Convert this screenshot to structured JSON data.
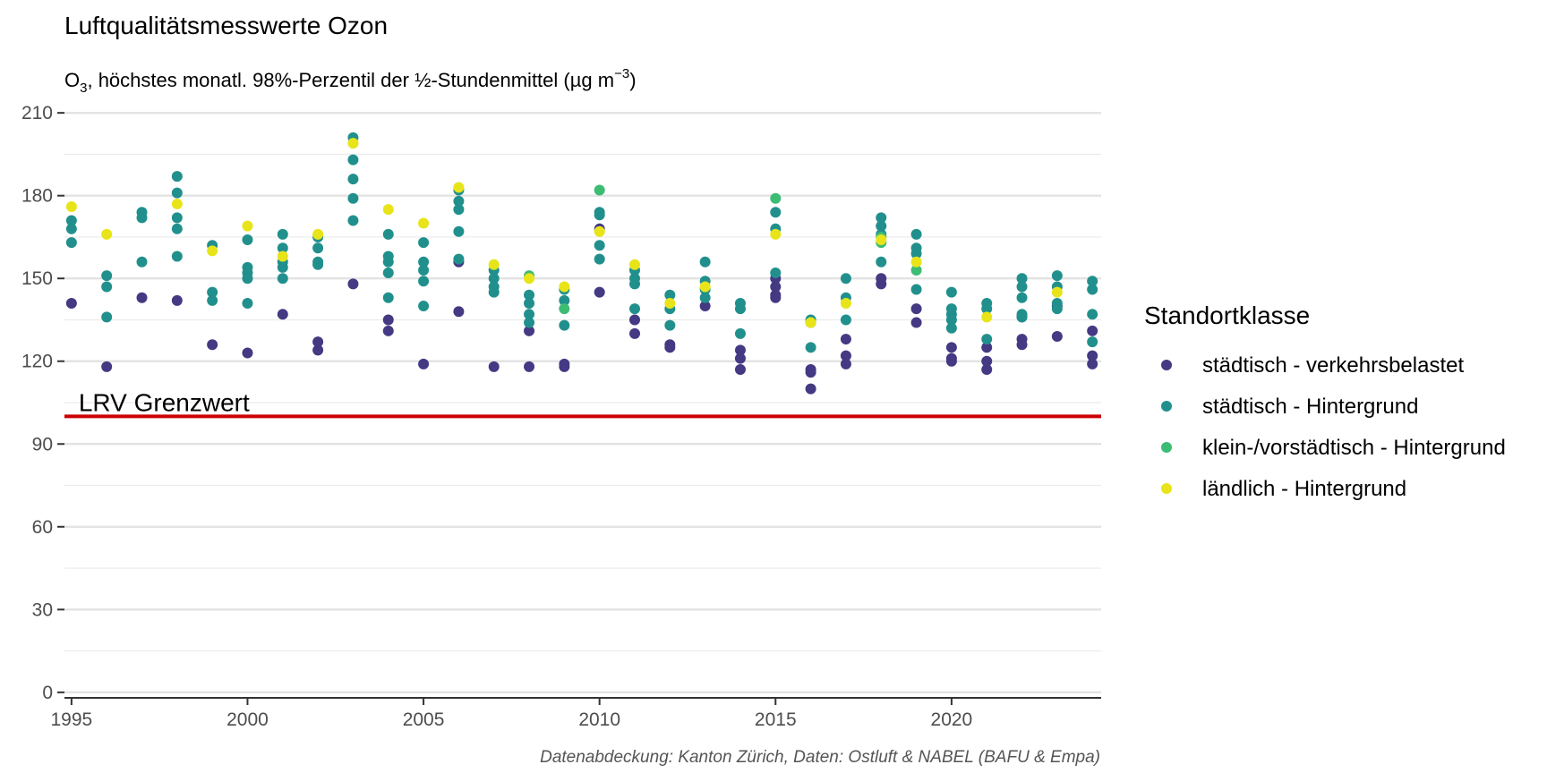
{
  "chart_data": {
    "type": "scatter",
    "title": "Luftqualitätsmesswerte Ozon",
    "subtitle": {
      "pre": "O",
      "sub": "3",
      "mid": ", höchstes monatl. 98%-Perzentil der ½-Stundenmittel (µg m",
      "sup": "−3",
      "post": ")"
    },
    "xlabel": "",
    "ylabel": "",
    "xlim": [
      1994.8,
      2024.25
    ],
    "ylim": [
      -2,
      212
    ],
    "x_ticks": [
      "1995",
      "2000",
      "2005",
      "2010",
      "2015",
      "2020"
    ],
    "y_ticks": [
      "0",
      "30",
      "60",
      "90",
      "120",
      "150",
      "180",
      "210"
    ],
    "grid": true,
    "legend": {
      "title": "Standortklasse",
      "position": "right",
      "items": [
        {
          "label": "städtisch - verkehrsbelastet",
          "color": "#443983"
        },
        {
          "label": "städtisch - Hintergrund",
          "color": "#21908d"
        },
        {
          "label": "klein-/vorstädtisch - Hintergrund",
          "color": "#3dbc74"
        },
        {
          "label": "ländlich - Hintergrund",
          "color": "#e8e419"
        }
      ]
    },
    "threshold": {
      "value": 100,
      "label": "LRV Grenzwert",
      "color": "#cc0000"
    },
    "caption": "Datenabdeckung: Kanton Zürich, Daten: Ostluft & NABEL (BAFU & Empa)",
    "series": [
      {
        "name": "städtisch - verkehrsbelastet",
        "color": "#443983",
        "points": [
          [
            1995,
            141
          ],
          [
            1996,
            118
          ],
          [
            1997,
            143
          ],
          [
            1998,
            142
          ],
          [
            1999,
            126
          ],
          [
            2000,
            123
          ],
          [
            2001,
            137
          ],
          [
            2002,
            127
          ],
          [
            2002,
            124
          ],
          [
            2003,
            148
          ],
          [
            2004,
            135
          ],
          [
            2004,
            131
          ],
          [
            2005,
            119
          ],
          [
            2006,
            138
          ],
          [
            2006,
            156
          ],
          [
            2007,
            118
          ],
          [
            2008,
            118
          ],
          [
            2008,
            131
          ],
          [
            2009,
            119
          ],
          [
            2009,
            118
          ],
          [
            2010,
            145
          ],
          [
            2010,
            168
          ],
          [
            2011,
            135
          ],
          [
            2011,
            130
          ],
          [
            2012,
            126
          ],
          [
            2012,
            125
          ],
          [
            2013,
            140
          ],
          [
            2014,
            124
          ],
          [
            2014,
            121
          ],
          [
            2014,
            117
          ],
          [
            2015,
            150
          ],
          [
            2015,
            147
          ],
          [
            2015,
            144
          ],
          [
            2015,
            143
          ],
          [
            2016,
            117
          ],
          [
            2016,
            116
          ],
          [
            2016,
            110
          ],
          [
            2017,
            128
          ],
          [
            2017,
            122
          ],
          [
            2017,
            119
          ],
          [
            2018,
            150
          ],
          [
            2018,
            148
          ],
          [
            2019,
            139
          ],
          [
            2019,
            134
          ],
          [
            2020,
            125
          ],
          [
            2020,
            121
          ],
          [
            2020,
            120
          ],
          [
            2021,
            125
          ],
          [
            2021,
            120
          ],
          [
            2021,
            117
          ],
          [
            2022,
            136
          ],
          [
            2022,
            128
          ],
          [
            2022,
            126
          ],
          [
            2023,
            140
          ],
          [
            2023,
            129
          ],
          [
            2024,
            131
          ],
          [
            2024,
            122
          ],
          [
            2024,
            119
          ]
        ]
      },
      {
        "name": "städtisch - Hintergrund",
        "color": "#21908d",
        "points": [
          [
            1995,
            171
          ],
          [
            1995,
            168
          ],
          [
            1995,
            163
          ],
          [
            1996,
            151
          ],
          [
            1996,
            147
          ],
          [
            1996,
            136
          ],
          [
            1997,
            174
          ],
          [
            1997,
            172
          ],
          [
            1997,
            156
          ],
          [
            1998,
            187
          ],
          [
            1998,
            181
          ],
          [
            1998,
            172
          ],
          [
            1998,
            168
          ],
          [
            1998,
            158
          ],
          [
            1999,
            162
          ],
          [
            1999,
            145
          ],
          [
            1999,
            142
          ],
          [
            2000,
            164
          ],
          [
            2000,
            154
          ],
          [
            2000,
            152
          ],
          [
            2000,
            150
          ],
          [
            2000,
            141
          ],
          [
            2001,
            166
          ],
          [
            2001,
            161
          ],
          [
            2001,
            156
          ],
          [
            2001,
            154
          ],
          [
            2001,
            150
          ],
          [
            2002,
            165
          ],
          [
            2002,
            161
          ],
          [
            2002,
            156
          ],
          [
            2002,
            155
          ],
          [
            2003,
            201
          ],
          [
            2003,
            193
          ],
          [
            2003,
            186
          ],
          [
            2003,
            179
          ],
          [
            2003,
            171
          ],
          [
            2004,
            166
          ],
          [
            2004,
            158
          ],
          [
            2004,
            156
          ],
          [
            2004,
            152
          ],
          [
            2004,
            143
          ],
          [
            2005,
            163
          ],
          [
            2005,
            156
          ],
          [
            2005,
            153
          ],
          [
            2005,
            149
          ],
          [
            2005,
            140
          ],
          [
            2006,
            182
          ],
          [
            2006,
            178
          ],
          [
            2006,
            175
          ],
          [
            2006,
            167
          ],
          [
            2006,
            157
          ],
          [
            2007,
            153
          ],
          [
            2007,
            150
          ],
          [
            2007,
            147
          ],
          [
            2007,
            145
          ],
          [
            2008,
            144
          ],
          [
            2008,
            141
          ],
          [
            2008,
            137
          ],
          [
            2008,
            134
          ],
          [
            2009,
            146
          ],
          [
            2009,
            142
          ],
          [
            2009,
            133
          ],
          [
            2010,
            174
          ],
          [
            2010,
            173
          ],
          [
            2010,
            162
          ],
          [
            2010,
            157
          ],
          [
            2011,
            153
          ],
          [
            2011,
            150
          ],
          [
            2011,
            148
          ],
          [
            2011,
            139
          ],
          [
            2012,
            144
          ],
          [
            2012,
            139
          ],
          [
            2012,
            133
          ],
          [
            2013,
            156
          ],
          [
            2013,
            149
          ],
          [
            2013,
            146
          ],
          [
            2013,
            143
          ],
          [
            2014,
            141
          ],
          [
            2014,
            139
          ],
          [
            2014,
            130
          ],
          [
            2015,
            174
          ],
          [
            2015,
            168
          ],
          [
            2015,
            152
          ],
          [
            2016,
            135
          ],
          [
            2016,
            134
          ],
          [
            2016,
            125
          ],
          [
            2017,
            150
          ],
          [
            2017,
            143
          ],
          [
            2017,
            135
          ],
          [
            2018,
            172
          ],
          [
            2018,
            169
          ],
          [
            2018,
            166
          ],
          [
            2018,
            156
          ],
          [
            2019,
            166
          ],
          [
            2019,
            161
          ],
          [
            2019,
            159
          ],
          [
            2019,
            146
          ],
          [
            2020,
            145
          ],
          [
            2020,
            139
          ],
          [
            2020,
            137
          ],
          [
            2020,
            135
          ],
          [
            2020,
            132
          ],
          [
            2021,
            141
          ],
          [
            2021,
            139
          ],
          [
            2021,
            128
          ],
          [
            2022,
            150
          ],
          [
            2022,
            147
          ],
          [
            2022,
            143
          ],
          [
            2022,
            137
          ],
          [
            2022,
            136
          ],
          [
            2023,
            151
          ],
          [
            2023,
            147
          ],
          [
            2023,
            141
          ],
          [
            2023,
            139
          ],
          [
            2024,
            149
          ],
          [
            2024,
            146
          ],
          [
            2024,
            137
          ],
          [
            2024,
            127
          ]
        ]
      },
      {
        "name": "klein-/vorstädtisch - Hintergrund",
        "color": "#3dbc74",
        "points": [
          [
            2008,
            151
          ],
          [
            2009,
            139
          ],
          [
            2010,
            182
          ],
          [
            2015,
            179
          ],
          [
            2018,
            165
          ],
          [
            2018,
            163
          ],
          [
            2019,
            153
          ]
        ]
      },
      {
        "name": "ländlich - Hintergrund",
        "color": "#e8e419",
        "points": [
          [
            1995,
            176
          ],
          [
            1996,
            166
          ],
          [
            1998,
            177
          ],
          [
            1999,
            160
          ],
          [
            2000,
            169
          ],
          [
            2001,
            158
          ],
          [
            2002,
            166
          ],
          [
            2003,
            199
          ],
          [
            2004,
            175
          ],
          [
            2005,
            170
          ],
          [
            2006,
            183
          ],
          [
            2007,
            155
          ],
          [
            2008,
            150
          ],
          [
            2009,
            147
          ],
          [
            2010,
            167
          ],
          [
            2011,
            155
          ],
          [
            2012,
            141
          ],
          [
            2013,
            147
          ],
          [
            2015,
            166
          ],
          [
            2016,
            134
          ],
          [
            2017,
            141
          ],
          [
            2018,
            164
          ],
          [
            2019,
            156
          ],
          [
            2021,
            136
          ],
          [
            2023,
            145
          ]
        ]
      }
    ]
  }
}
